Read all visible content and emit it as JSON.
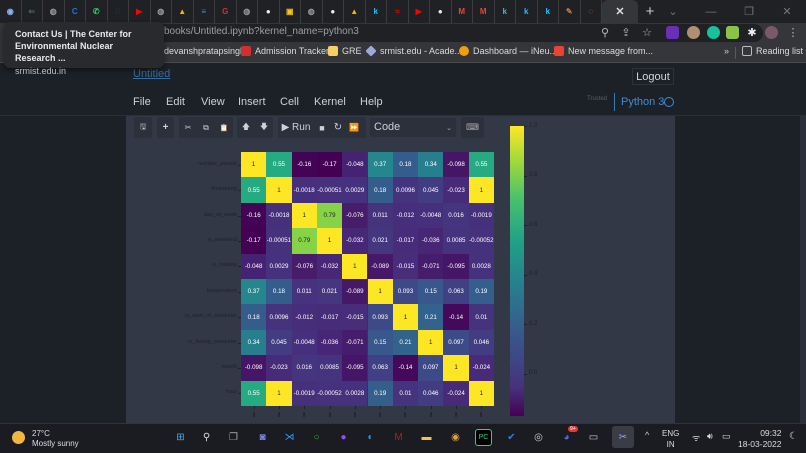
{
  "browser": {
    "tabs": [
      {
        "icon": "circle-globe-icon",
        "glyph": "◉",
        "color": "#8ab4f8"
      },
      {
        "icon": "back-arrow-icon",
        "glyph": "⇐",
        "color": "#4a6a5a"
      },
      {
        "icon": "globe-icon",
        "glyph": "◍",
        "color": "#999"
      },
      {
        "icon": "c-icon",
        "glyph": "C",
        "color": "#1a73e8"
      },
      {
        "icon": "whatsapp-icon",
        "glyph": "✆",
        "color": "#25d366"
      },
      {
        "icon": "d-icon",
        "glyph": "D",
        "color": "#1d2b3a"
      },
      {
        "icon": "youtube-icon",
        "glyph": "▶",
        "color": "#ff0000"
      },
      {
        "icon": "globe-icon",
        "glyph": "◍",
        "color": "#999"
      },
      {
        "icon": "google-drive-icon",
        "glyph": "▲",
        "color": "#f4b400"
      },
      {
        "icon": "google-docs-icon",
        "glyph": "≡",
        "color": "#4285f4"
      },
      {
        "icon": "g-icon",
        "glyph": "G",
        "color": "#d93025"
      },
      {
        "icon": "globe-icon",
        "glyph": "◍",
        "color": "#999"
      },
      {
        "icon": "github-icon",
        "glyph": "●",
        "color": "#eee"
      },
      {
        "icon": "classroom-icon",
        "glyph": "▣",
        "color": "#f5c518"
      },
      {
        "icon": "globe-icon",
        "glyph": "◍",
        "color": "#999"
      },
      {
        "icon": "github-icon",
        "glyph": "●",
        "color": "#eee"
      },
      {
        "icon": "google-drive-icon",
        "glyph": "▲",
        "color": "#f4b400"
      },
      {
        "icon": "k-icon",
        "glyph": "k",
        "color": "#20beff"
      },
      {
        "icon": "airtel-icon",
        "glyph": "≈",
        "color": "#e40000"
      },
      {
        "icon": "youtube-icon",
        "glyph": "▶",
        "color": "#ff0000"
      },
      {
        "icon": "github-icon",
        "glyph": "●",
        "color": "#eee"
      },
      {
        "icon": "gmail-icon",
        "glyph": "M",
        "color": "#ea4335"
      },
      {
        "icon": "gmail-icon",
        "glyph": "M",
        "color": "#ea4335"
      },
      {
        "icon": "k-icon",
        "glyph": "k",
        "color": "#20beff"
      },
      {
        "icon": "k-icon",
        "glyph": "k",
        "color": "#20beff"
      },
      {
        "icon": "k-icon",
        "glyph": "k",
        "color": "#20beff"
      },
      {
        "icon": "pen-icon",
        "glyph": "✎",
        "color": "#c07a3a"
      },
      {
        "icon": "jupyter-icon",
        "glyph": "◌",
        "color": "#f37626"
      }
    ],
    "active_tab_close": "✕",
    "new_tab": "+",
    "window_controls": {
      "dropdown": "⌄",
      "minimize": "—",
      "restore": "❐",
      "close": "✕"
    },
    "url": "books/Untitled.ipynb?kernel_name=python3",
    "bookmarks": [
      {
        "label": "devanshpratapsingh",
        "icon": "none"
      },
      {
        "label": "Admission Tracker",
        "icon": "admission-icon",
        "color": "#d32f2f"
      },
      {
        "label": "GRE",
        "icon": "folder-icon",
        "color": "#f5d063"
      },
      {
        "label": "srmist.edu - Acade...",
        "icon": "srm-icon",
        "color": "#9fa8da"
      },
      {
        "label": "Dashboard — iNeu...",
        "icon": "ineuron-icon",
        "color": "#f39c12"
      },
      {
        "label": "New message from...",
        "icon": "gmail-icon",
        "color": "#ea4335"
      }
    ],
    "bookmarks_overflow": "»",
    "reading_list": "Reading list",
    "tooltip": {
      "title_line1": "Contact Us | The Center for",
      "title_line2": "Environmental Nuclear Research ...",
      "domain": "srmist.edu.in"
    }
  },
  "jupyter": {
    "notebook_title": "Untitled",
    "logout_label": "Logout",
    "menu": [
      "File",
      "Edit",
      "View",
      "Insert",
      "Cell",
      "Kernel",
      "Help"
    ],
    "trusted_label": "Trusted",
    "kernel_name": "Python 3",
    "toolbar": {
      "save": "🖫",
      "add": "+",
      "cut": "✂",
      "copy": "⧉",
      "paste": "📋",
      "move_up": "🡅",
      "move_down": "🡇",
      "run_label": "▶ Run",
      "interrupt": "■",
      "restart": "↻",
      "restart_run_all": "⏩",
      "cell_type": "Code",
      "cell_type_arrow": "⌄",
      "keyboard": "⌨"
    }
  },
  "chart_data": {
    "type": "heatmap",
    "title": "",
    "colormap": "viridis",
    "row_labels": [
      "number_people",
      "timestamp",
      "day_of_week",
      "is_weekend",
      "is_holiday",
      "temperature",
      "is_start_of_semester",
      "is_during_semester",
      "month",
      "hour"
    ],
    "col_labels": [
      "number_people",
      "timestamp",
      "day_of_week",
      "is_weekend",
      "is_holiday",
      "temperature",
      "is_start_of_semester",
      "is_during_semester",
      "month",
      "hour"
    ],
    "values": [
      [
        "1",
        "0.55",
        "-0.16",
        "-0.17",
        "-0.048",
        "0.37",
        "0.18",
        "0.34",
        "-0.098",
        "0.55"
      ],
      [
        "0.55",
        "1",
        "-0.0018",
        "-0.00051",
        "0.0029",
        "0.18",
        "0.0096",
        "0.045",
        "-0.023",
        "1"
      ],
      [
        "-0.16",
        "-0.0018",
        "1",
        "0.79",
        "-0.076",
        "0.011",
        "-0.012",
        "-0.0048",
        "0.016",
        "-0.0019"
      ],
      [
        "-0.17",
        "-0.00051",
        "0.79",
        "1",
        "-0.032",
        "0.021",
        "-0.017",
        "-0.036",
        "0.0085",
        "-0.00052"
      ],
      [
        "-0.048",
        "0.0029",
        "-0.076",
        "-0.032",
        "1",
        "-0.089",
        "-0.015",
        "-0.071",
        "-0.095",
        "0.0028"
      ],
      [
        "0.37",
        "0.18",
        "0.011",
        "0.021",
        "-0.089",
        "1",
        "0.093",
        "0.15",
        "0.063",
        "0.19"
      ],
      [
        "0.18",
        "0.0096",
        "-0.012",
        "-0.017",
        "-0.015",
        "0.093",
        "1",
        "0.21",
        "-0.14",
        "0.01"
      ],
      [
        "0.34",
        "0.045",
        "-0.0048",
        "-0.036",
        "-0.071",
        "0.15",
        "0.21",
        "1",
        "0.097",
        "0.046"
      ],
      [
        "-0.098",
        "-0.023",
        "0.016",
        "0.0085",
        "-0.095",
        "0.063",
        "-0.14",
        "0.097",
        "1",
        "-0.024"
      ],
      [
        "0.55",
        "1",
        "-0.0019",
        "-0.00052",
        "0.0028",
        "0.19",
        "0.01",
        "0.046",
        "-0.024",
        "1"
      ]
    ],
    "colorbar": {
      "ticks": [
        "1.0",
        "0.8",
        "0.6",
        "0.4",
        "0.2",
        "0.0"
      ],
      "range": [
        -0.17,
        1.0
      ]
    },
    "annotated": true
  },
  "taskbar": {
    "weather_temp": "27°C",
    "weather_desc": "Mostly sunny",
    "apps": [
      {
        "name": "start",
        "glyph": "⊞",
        "color": "#3fa9f5"
      },
      {
        "name": "search",
        "glyph": "⚲",
        "color": "#ddd"
      },
      {
        "name": "task-view",
        "glyph": "❐",
        "color": "#aaa"
      },
      {
        "name": "teams-chat",
        "glyph": "◙",
        "color": "#7b83eb"
      },
      {
        "name": "vscode",
        "glyph": "⋊",
        "color": "#2f9cf4"
      },
      {
        "name": "app-ring",
        "glyph": "○",
        "color": "#3cb043"
      },
      {
        "name": "github-desktop",
        "glyph": "●",
        "color": "#8a4fff"
      },
      {
        "name": "edge",
        "glyph": "◐",
        "color": "#1fa0e0"
      },
      {
        "name": "mcafee",
        "glyph": "M",
        "color": "#c01818"
      },
      {
        "name": "file-explorer",
        "glyph": "▬",
        "color": "#f5c542"
      },
      {
        "name": "chrome",
        "glyph": "◉",
        "color": "#e0a030"
      },
      {
        "name": "pycharm",
        "glyph": "PC",
        "color": "#21d789"
      },
      {
        "name": "todo",
        "glyph": "✔",
        "color": "#2f7de1"
      },
      {
        "name": "obs",
        "glyph": "◎",
        "color": "#ccc"
      },
      {
        "name": "discord",
        "glyph": "◕",
        "color": "#5865f2",
        "badge": "9+"
      },
      {
        "name": "terminal",
        "glyph": "▭",
        "color": "#ccc"
      },
      {
        "name": "snipping-tool",
        "glyph": "✂",
        "color": "#a0a0ff"
      }
    ],
    "tray_chevron": "^",
    "lang_line1": "ENG",
    "lang_line2": "IN",
    "time": "09:32",
    "date": "18-03-2022"
  }
}
